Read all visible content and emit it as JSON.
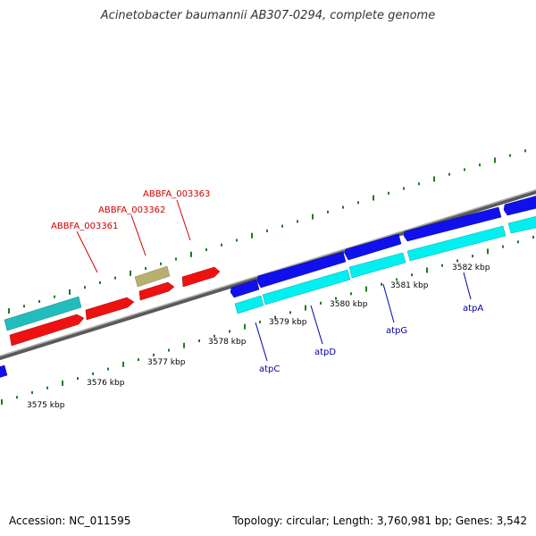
{
  "title": "Acinetobacter baumannii AB307-0294, complete genome",
  "footer": {
    "accession": "Accession: NC_011595",
    "summary": "Topology: circular; Length: 3,760,981 bp; Genes: 3,542"
  },
  "colors": {
    "backbone": "#7a7a7a",
    "tick": "#1f7a1f",
    "red_feature": "#ff0000",
    "cyan_feature": "#00eeee",
    "dark_cyan_feature": "#22b8b8",
    "blue_feature": "#0000ee",
    "olive_feature": "#b8b070",
    "red_label": "#cc0000",
    "blue_label": "#0000aa"
  },
  "scale_labels": [
    "3575 kbp",
    "3576 kbp",
    "3577 kbp",
    "3578 kbp",
    "3579 kbp",
    "3580 kbp",
    "3581 kbp",
    "3582 kbp"
  ],
  "gene_labels": {
    "red": [
      "ABBFA_003361",
      "ABBFA_003362",
      "ABBFA_003363"
    ],
    "blue": [
      "atpC",
      "atpD",
      "atpG",
      "atpA"
    ]
  }
}
